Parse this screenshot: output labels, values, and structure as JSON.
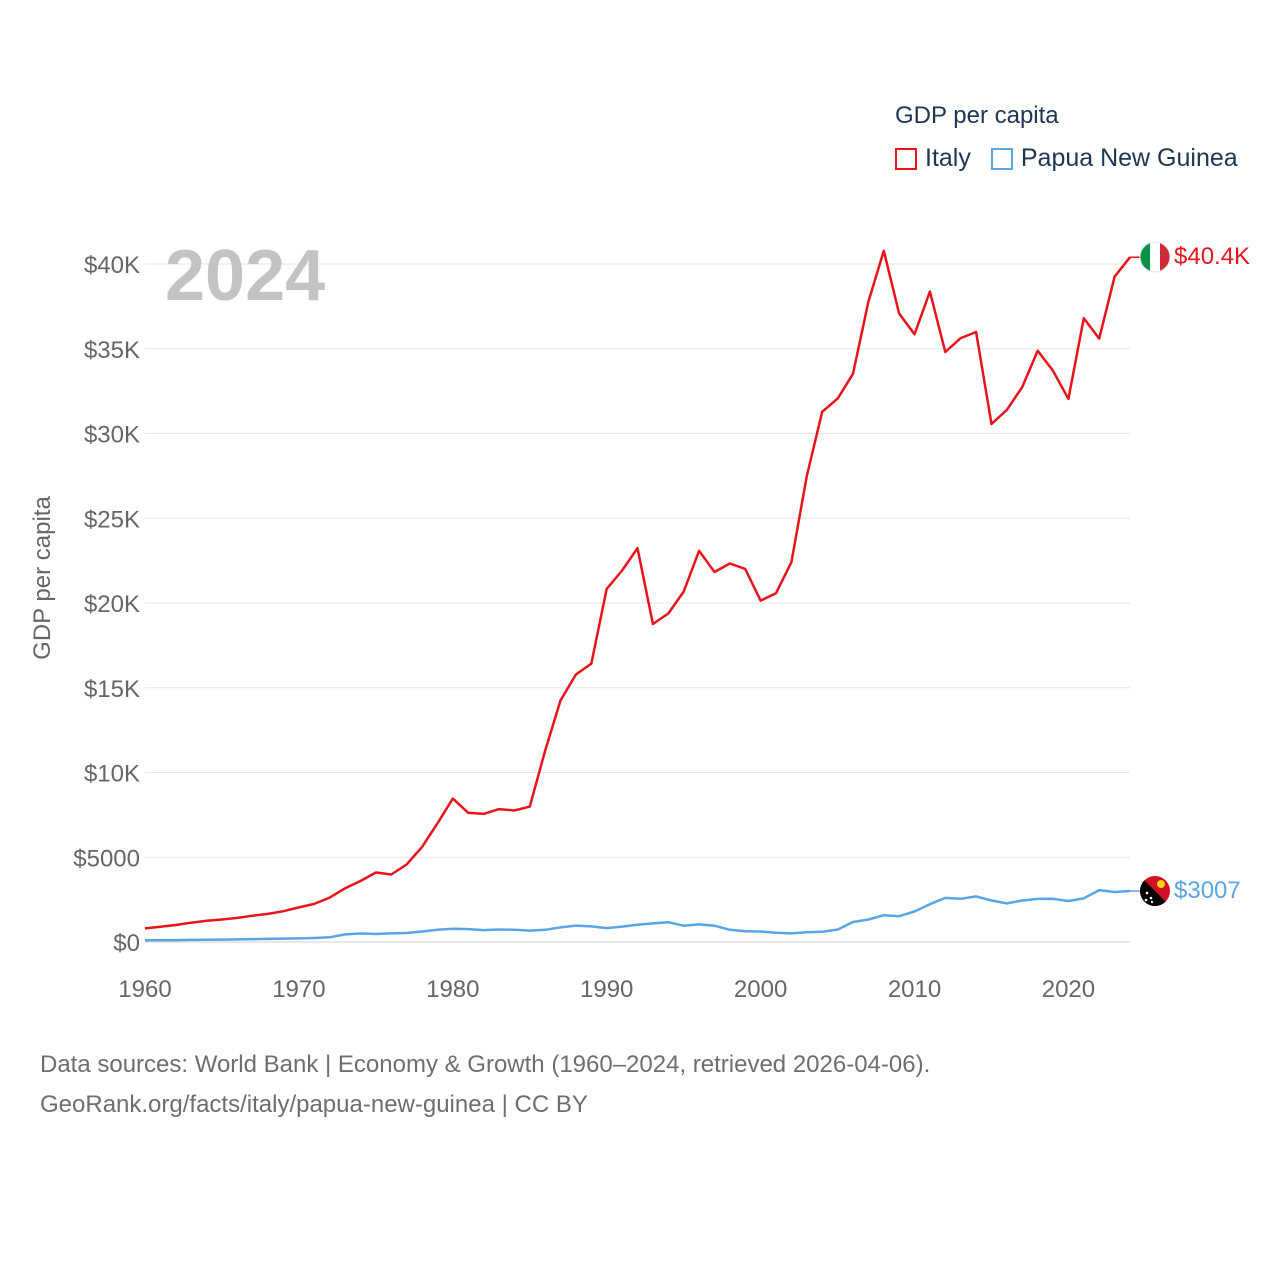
{
  "legend": {
    "title": "GDP per capita",
    "items": [
      {
        "label": "Italy",
        "color": "#e8141c"
      },
      {
        "label": "Papua New Guinea",
        "color": "#5aa5e6"
      }
    ]
  },
  "footer": {
    "line1": "Data sources: World Bank | Economy & Growth (1960–2024, retrieved 2026-04-06).",
    "line2": "GeoRank.org/facts/italy/papua-new-guinea | CC BY"
  },
  "chart_data": {
    "type": "line",
    "title": "GDP per capita",
    "year_label": "2024",
    "ylabel": "GDP per capita",
    "xlabel": "",
    "xlim": [
      1960,
      2024
    ],
    "ylim": [
      0,
      40000
    ],
    "x_ticks": [
      1960,
      1970,
      1980,
      1990,
      2000,
      2010,
      2020
    ],
    "y_ticks": [
      {
        "value": 0,
        "label": "$0"
      },
      {
        "value": 5000,
        "label": "$5000"
      },
      {
        "value": 10000,
        "label": "$10K"
      },
      {
        "value": 15000,
        "label": "$15K"
      },
      {
        "value": 20000,
        "label": "$20K"
      },
      {
        "value": 25000,
        "label": "$25K"
      },
      {
        "value": 30000,
        "label": "$30K"
      },
      {
        "value": 35000,
        "label": "$35K"
      },
      {
        "value": 40000,
        "label": "$40K"
      }
    ],
    "grid": true,
    "x": [
      1960,
      1961,
      1962,
      1963,
      1964,
      1965,
      1966,
      1967,
      1968,
      1969,
      1970,
      1971,
      1972,
      1973,
      1974,
      1975,
      1976,
      1977,
      1978,
      1979,
      1980,
      1981,
      1982,
      1983,
      1984,
      1985,
      1986,
      1987,
      1988,
      1989,
      1990,
      1991,
      1992,
      1993,
      1994,
      1995,
      1996,
      1997,
      1998,
      1999,
      2000,
      2001,
      2002,
      2003,
      2004,
      2005,
      2006,
      2007,
      2008,
      2009,
      2010,
      2011,
      2012,
      2013,
      2014,
      2015,
      2016,
      2017,
      2018,
      2019,
      2020,
      2021,
      2022,
      2023,
      2024
    ],
    "series": [
      {
        "name": "Italy",
        "color": "#e8141c",
        "end_label": "$40.4K",
        "values": [
          804,
          900,
          1000,
          1140,
          1250,
          1330,
          1420,
          1550,
          1660,
          1820,
          2040,
          2250,
          2620,
          3170,
          3600,
          4100,
          3980,
          4570,
          5600,
          7000,
          8460,
          7620,
          7560,
          7840,
          7760,
          7990,
          11300,
          14250,
          15780,
          16420,
          20830,
          21920,
          23240,
          18760,
          19380,
          20670,
          23080,
          21830,
          22330,
          22010,
          20140,
          20580,
          22410,
          27490,
          31280,
          32060,
          33520,
          37780,
          40780,
          37080,
          35850,
          38370,
          34810,
          35630,
          35990,
          30560,
          31400,
          32750,
          34880,
          33700,
          32040,
          36800,
          35600,
          39250,
          40400
        ]
      },
      {
        "name": "Papua New Guinea",
        "color": "#5aa5e6",
        "end_label": "$3007",
        "values": [
          100,
          110,
          115,
          125,
          130,
          140,
          155,
          170,
          185,
          200,
          215,
          235,
          280,
          450,
          500,
          470,
          510,
          530,
          620,
          720,
          780,
          760,
          700,
          740,
          720,
          670,
          720,
          860,
          970,
          920,
          820,
          910,
          1020,
          1100,
          1170,
          960,
          1040,
          960,
          720,
          640,
          620,
          540,
          510,
          570,
          610,
          730,
          1180,
          1330,
          1580,
          1520,
          1800,
          2230,
          2600,
          2550,
          2690,
          2450,
          2280,
          2450,
          2540,
          2550,
          2420,
          2580,
          3060,
          2950,
          3007
        ]
      }
    ]
  }
}
